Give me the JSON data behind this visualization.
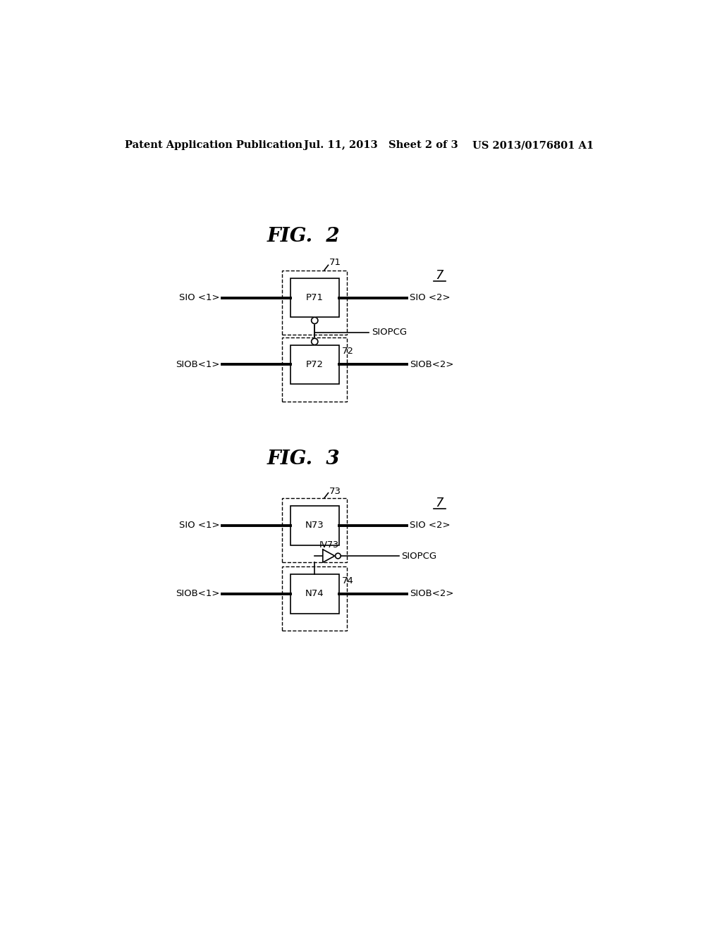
{
  "header_left": "Patent Application Publication",
  "header_mid": "Jul. 11, 2013   Sheet 2 of 3",
  "header_right": "US 2013/0176801 A1",
  "fig2_title": "FIG.  2",
  "fig3_title": "FIG.  3",
  "bg_color": "#ffffff",
  "line_color": "#000000",
  "fig2": {
    "ref_num": "7",
    "box71_label": "71",
    "box71_inner": "P71",
    "box72_label": "72",
    "box72_inner": "P72",
    "sio1": "SIO <1>",
    "sio2": "SIO <2>",
    "siob1": "SIOB<1>",
    "siob2": "SIOB<2>",
    "siopcg": "SIOPCG"
  },
  "fig3": {
    "ref_num": "7",
    "box73_label": "73",
    "box73_inner": "N73",
    "box74_label": "74",
    "box74_inner": "N74",
    "inv_label": "IV73",
    "sio1": "SIO <1>",
    "sio2": "SIO <2>",
    "siob1": "SIOB<1>",
    "siob2": "SIOB<2>",
    "siopcg": "SIOPCG"
  }
}
